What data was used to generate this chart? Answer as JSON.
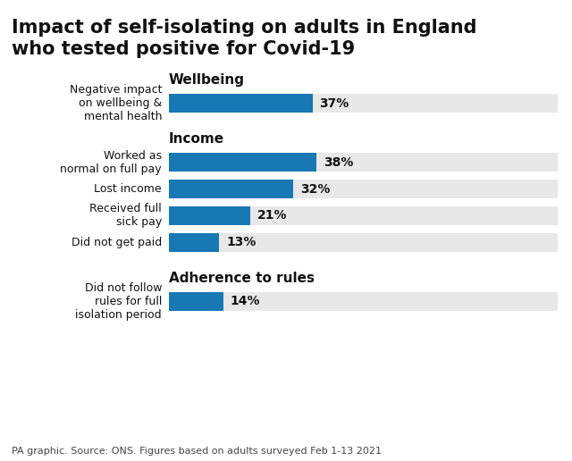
{
  "title_line1": "Impact of self-isolating on adults in England",
  "title_line2": "who tested positive for Covid-19",
  "title_fontsize": 15,
  "bar_color": "#1878b4",
  "bg_color": "#e8e8e8",
  "fig_bg": "#ffffff",
  "footnote": "PA graphic. Source: ONS. Figures based on adults surveyed Feb 1-13 2021",
  "footnote_fontsize": 8,
  "sections": [
    {
      "header": "Wellbeing",
      "bars": [
        {
          "label": "Negative impact\non wellbeing &\nmental health",
          "value": 37
        }
      ]
    },
    {
      "header": "Income",
      "bars": [
        {
          "label": "Worked as\nnormal on full pay",
          "value": 38
        },
        {
          "label": "Lost income",
          "value": 32
        },
        {
          "label": "Received full\nsick pay",
          "value": 21
        },
        {
          "label": "Did not get paid",
          "value": 13
        }
      ]
    },
    {
      "header": "Adherence to rules",
      "bars": [
        {
          "label": "Did not follow\nrules for full\nisolation period",
          "value": 14
        }
      ]
    }
  ],
  "label_fontsize": 9,
  "header_fontsize": 11,
  "value_fontsize": 10
}
